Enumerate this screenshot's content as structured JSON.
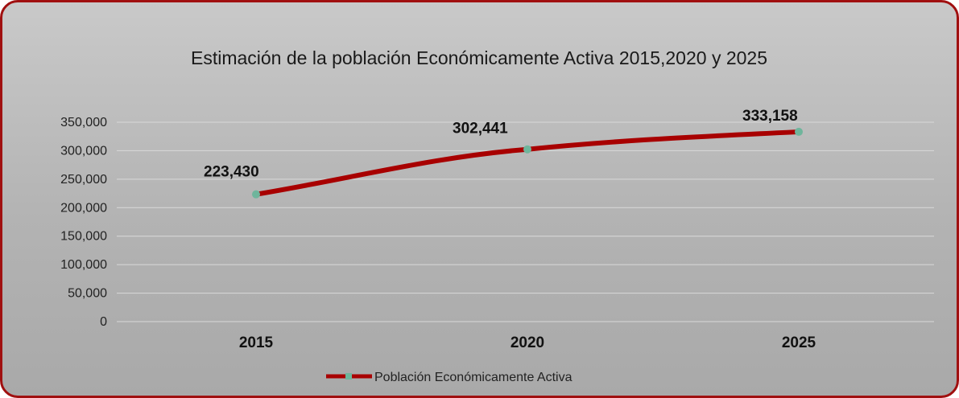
{
  "chart_data": {
    "type": "line",
    "title": "Estimación de la población Económicamente Activa 2015,2020 y 2025",
    "categories": [
      "2015",
      "2020",
      "2025"
    ],
    "series": [
      {
        "name": "Población Económicamente Activa",
        "values": [
          223430,
          302441,
          333158
        ],
        "data_labels": [
          "223,430",
          "302,441",
          "333,158"
        ]
      }
    ],
    "y_ticks": [
      "0",
      "50,000",
      "100,000",
      "150,000",
      "200,000",
      "250,000",
      "300,000",
      "350,000"
    ],
    "ylim": [
      0,
      350000
    ],
    "grid": true,
    "legend": "bottom",
    "colors": {
      "line": "#a80000",
      "marker": "#6fb59c"
    }
  }
}
